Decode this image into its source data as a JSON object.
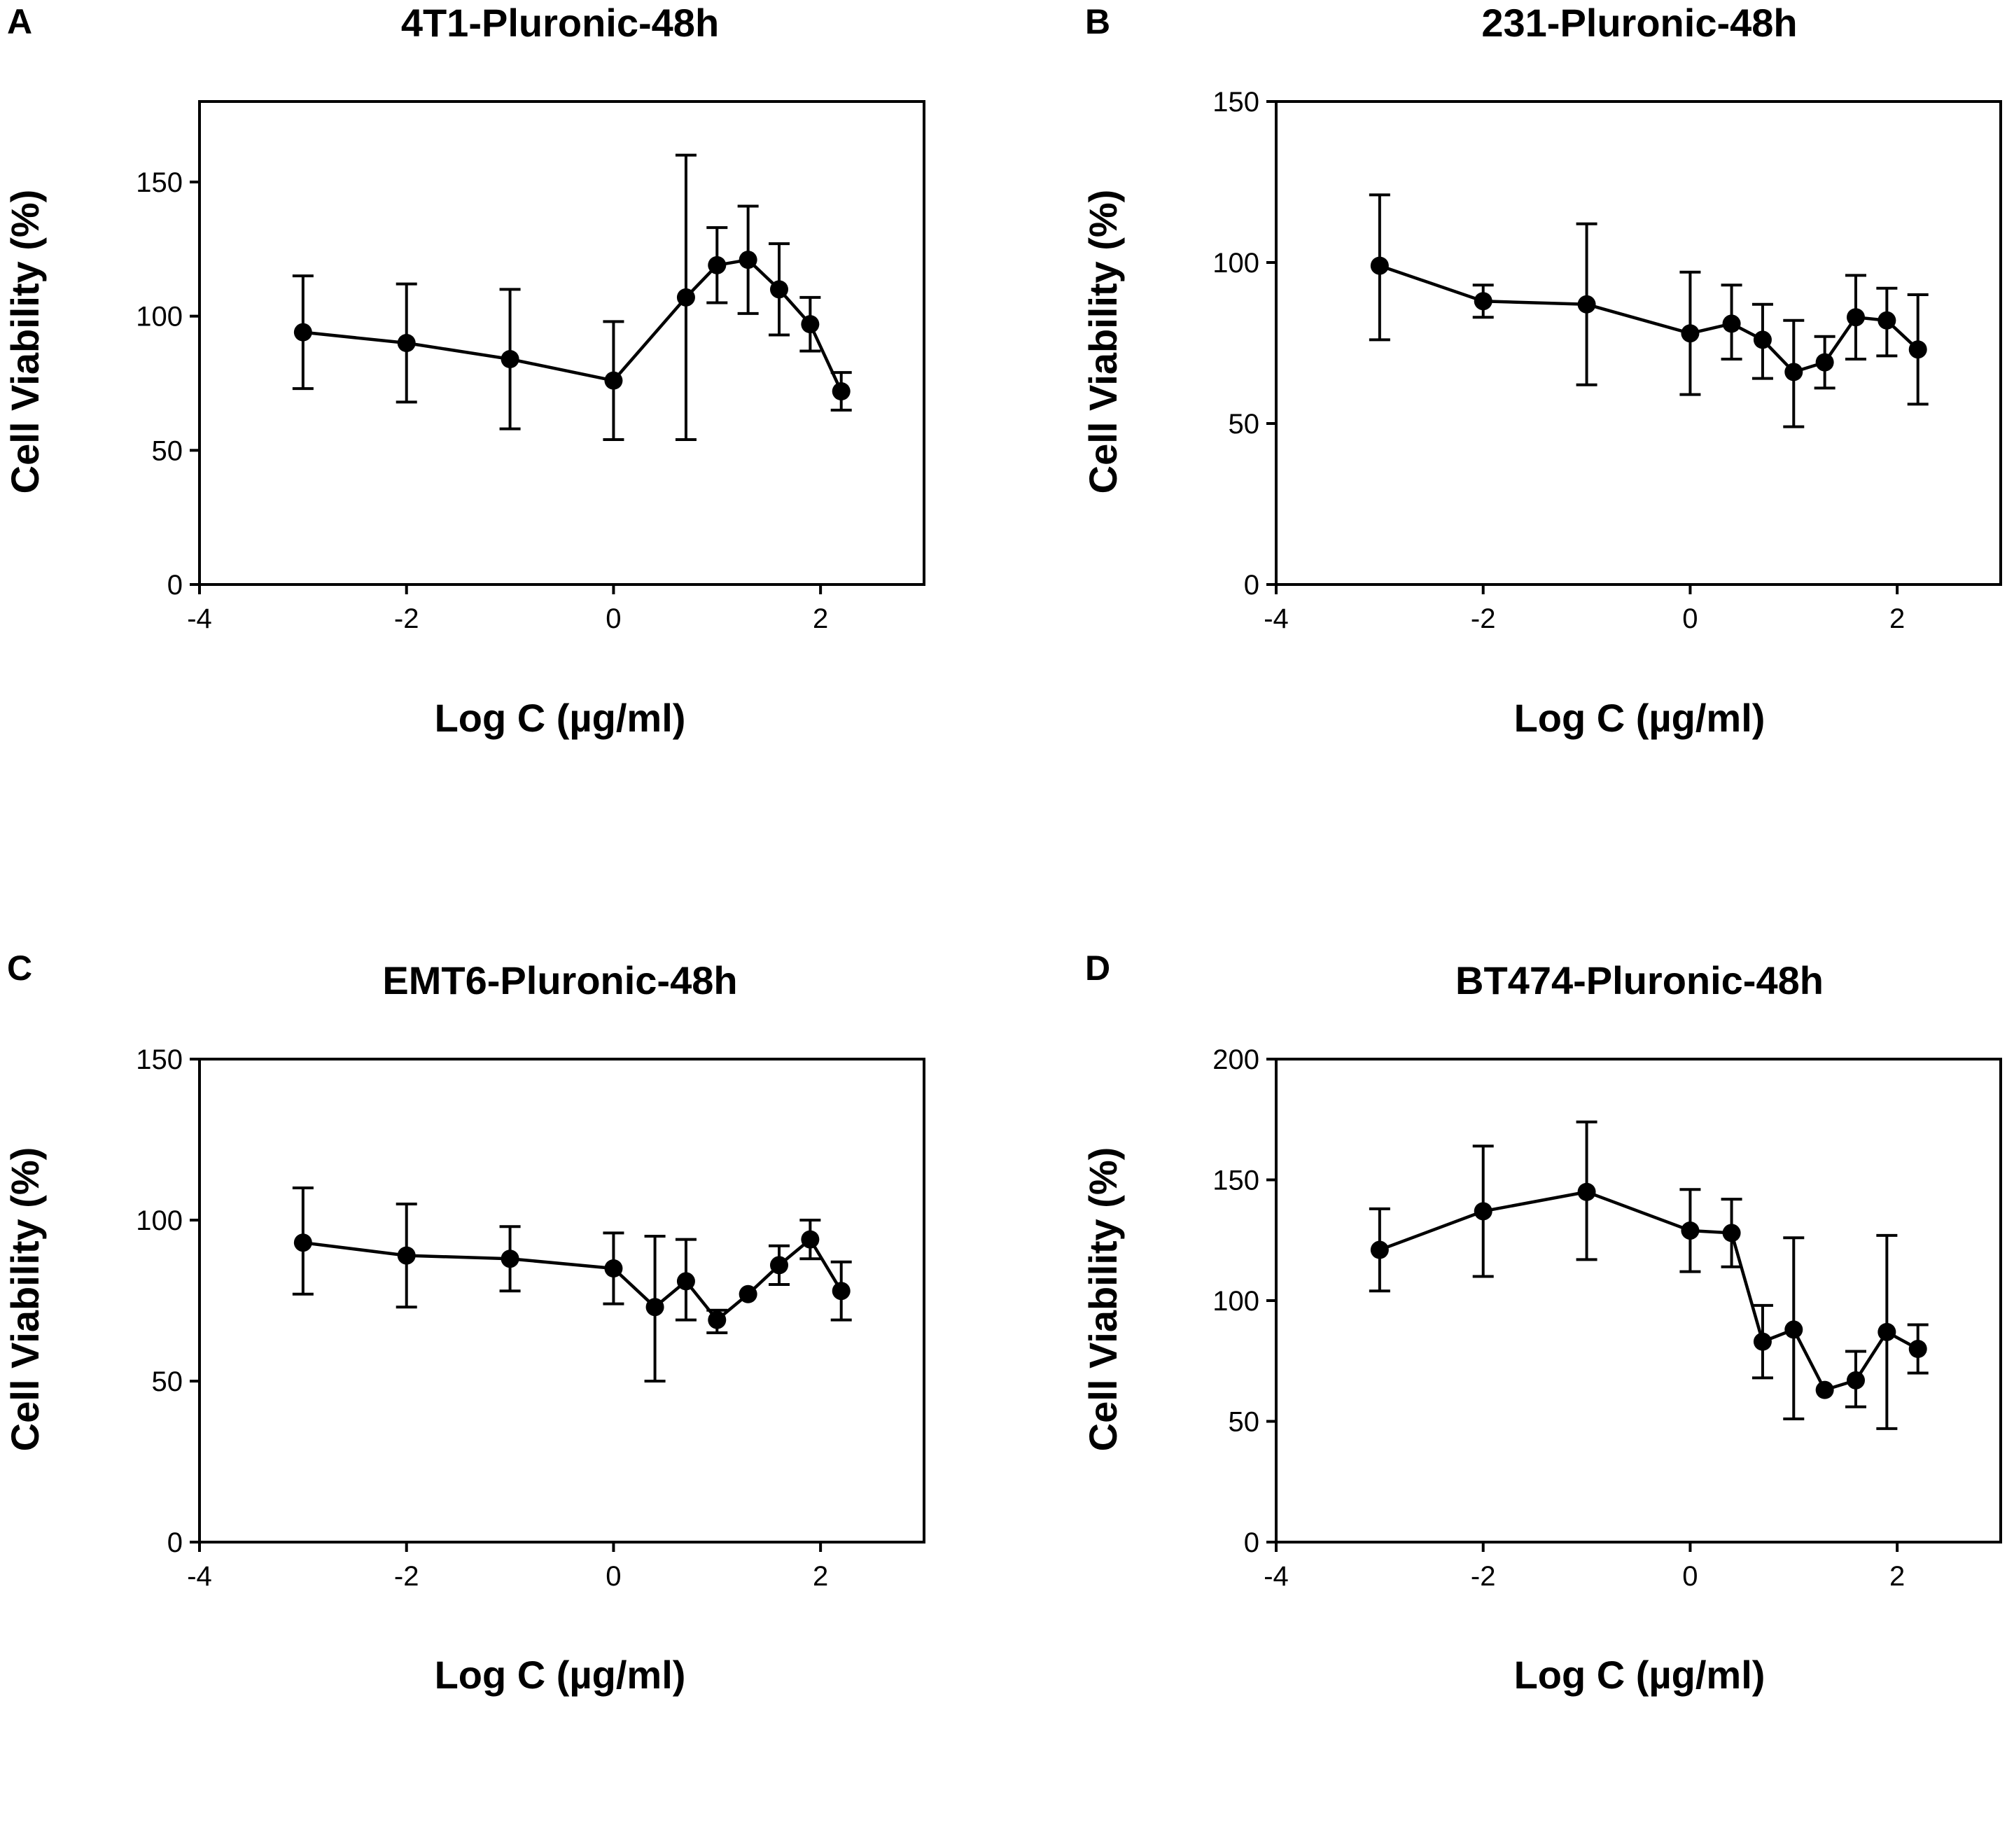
{
  "figure": {
    "panel_count": 4
  },
  "chart_data": [
    {
      "panel": "A",
      "type": "line",
      "title": "4T1-Pluronic-48h",
      "xlabel": "Log C (µg/ml)",
      "ylabel": "Cell Viability (%)",
      "xlim": [
        -4,
        3
      ],
      "ylim": [
        0,
        180
      ],
      "xticks": [
        -4,
        -2,
        0,
        2
      ],
      "yticks": [
        0,
        50,
        100,
        150
      ],
      "grid": false,
      "series": [
        {
          "name": "4T1",
          "x": [
            -3,
            -2,
            -1,
            0,
            0.7,
            1,
            1.3,
            1.6,
            1.9,
            2.2
          ],
          "y": [
            94,
            90,
            84,
            76,
            107,
            119,
            121,
            110,
            97,
            72
          ],
          "err_upper": [
            115,
            112,
            110,
            98,
            160,
            133,
            141,
            127,
            107,
            79
          ],
          "err_lower": [
            73,
            68,
            58,
            54,
            54,
            105,
            101,
            93,
            87,
            65
          ]
        }
      ]
    },
    {
      "panel": "B",
      "type": "line",
      "title": "231-Pluronic-48h",
      "xlabel": "Log C (µg/ml)",
      "ylabel": "Cell Viability (%)",
      "xlim": [
        -4,
        3
      ],
      "ylim": [
        0,
        150
      ],
      "xticks": [
        -4,
        -2,
        0,
        2
      ],
      "yticks": [
        0,
        50,
        100,
        150
      ],
      "grid": false,
      "series": [
        {
          "name": "231",
          "x": [
            -3,
            -2,
            -1,
            0,
            0.4,
            0.7,
            1,
            1.3,
            1.6,
            1.9,
            2.2
          ],
          "y": [
            99,
            88,
            87,
            78,
            81,
            76,
            66,
            69,
            83,
            82,
            73
          ],
          "err_upper": [
            121,
            93,
            112,
            97,
            93,
            87,
            82,
            77,
            96,
            92,
            90
          ],
          "err_lower": [
            76,
            83,
            62,
            59,
            70,
            64,
            49,
            61,
            70,
            71,
            56
          ]
        }
      ]
    },
    {
      "panel": "C",
      "type": "line",
      "title": "EMT6-Pluronic-48h",
      "xlabel": "Log C (µg/ml)",
      "ylabel": "Cell Viability (%)",
      "xlim": [
        -4,
        3
      ],
      "ylim": [
        0,
        150
      ],
      "xticks": [
        -4,
        -2,
        0,
        2
      ],
      "yticks": [
        0,
        50,
        100,
        150
      ],
      "grid": false,
      "series": [
        {
          "name": "EMT6",
          "x": [
            -3,
            -2,
            -1,
            0,
            0.4,
            0.7,
            1,
            1.3,
            1.6,
            1.9,
            2.2
          ],
          "y": [
            93,
            89,
            88,
            85,
            73,
            81,
            69,
            77,
            86,
            94,
            78
          ],
          "err_upper": [
            110,
            105,
            98,
            96,
            95,
            94,
            72,
            77,
            92,
            100,
            87
          ],
          "err_lower": [
            77,
            73,
            78,
            74,
            50,
            69,
            65,
            77,
            80,
            88,
            69
          ]
        }
      ]
    },
    {
      "panel": "D",
      "type": "line",
      "title": "BT474-Pluronic-48h",
      "xlabel": "Log C (µg/ml)",
      "ylabel": "Cell Viability (%)",
      "xlim": [
        -4,
        3
      ],
      "ylim": [
        0,
        200
      ],
      "xticks": [
        -4,
        -2,
        0,
        2
      ],
      "yticks": [
        0,
        50,
        100,
        150,
        200
      ],
      "grid": false,
      "series": [
        {
          "name": "BT474",
          "x": [
            -3,
            -2,
            -1,
            0,
            0.4,
            0.7,
            1,
            1.3,
            1.6,
            1.9,
            2.2
          ],
          "y": [
            121,
            137,
            145,
            129,
            128,
            83,
            88,
            63,
            67,
            87,
            80
          ],
          "err_upper": [
            138,
            164,
            174,
            146,
            142,
            98,
            126,
            63,
            79,
            127,
            90
          ],
          "err_lower": [
            104,
            110,
            117,
            112,
            114,
            68,
            51,
            63,
            56,
            47,
            70
          ]
        }
      ]
    }
  ]
}
